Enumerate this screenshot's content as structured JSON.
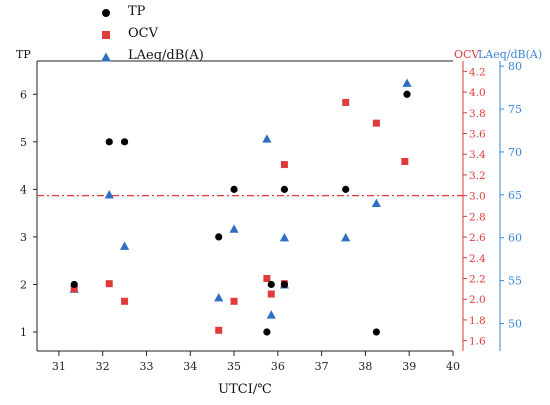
{
  "chart_data": {
    "type": "scatter",
    "xlabel": "UTCI/℃",
    "xlim": [
      30.5,
      40
    ],
    "xticks": [
      "31",
      "32",
      "33",
      "34",
      "35",
      "36",
      "37",
      "38",
      "39",
      "40"
    ],
    "y_left": {
      "label": "TP",
      "lim": [
        0.6,
        6.7
      ],
      "ticks": [
        "1",
        "2",
        "3",
        "4",
        "5",
        "6"
      ]
    },
    "y_right1": {
      "label": "OCV",
      "lim": [
        1.5,
        4.3
      ],
      "ticks": [
        "1.6",
        "1.8",
        "2.0",
        "2.2",
        "2.4",
        "2.6",
        "2.8",
        "3.0",
        "3.2",
        "3.4",
        "3.6",
        "3.8",
        "4.0",
        "4.2"
      ],
      "color": "#e03a3a"
    },
    "y_right2": {
      "label": "LAeq/dB(A)",
      "lim": [
        46.8,
        80.6
      ],
      "ticks": [
        "50",
        "55",
        "60",
        "65",
        "70",
        "75",
        "80"
      ],
      "color": "#3a86d8"
    },
    "reference_line": {
      "axis": "OCV",
      "value": 3.0,
      "color": "#e03a3a",
      "style": "dash-dot"
    },
    "series": [
      {
        "name": "TP",
        "axis": "y_left",
        "marker": "circle",
        "color": "#000000",
        "points": [
          [
            31.35,
            2.0
          ],
          [
            32.15,
            5.0
          ],
          [
            32.5,
            5.0
          ],
          [
            34.65,
            3.0
          ],
          [
            35.0,
            4.0
          ],
          [
            35.75,
            1.0
          ],
          [
            35.85,
            2.0
          ],
          [
            36.15,
            4.0
          ],
          [
            36.15,
            2.0
          ],
          [
            37.55,
            4.0
          ],
          [
            38.25,
            1.0
          ],
          [
            38.95,
            6.0
          ]
        ]
      },
      {
        "name": "OCV",
        "axis": "y_right1",
        "marker": "square",
        "color": "#e03a3a",
        "points": [
          [
            31.35,
            2.1
          ],
          [
            32.15,
            2.15
          ],
          [
            32.5,
            1.98
          ],
          [
            34.65,
            1.7
          ],
          [
            35.0,
            1.98
          ],
          [
            35.75,
            2.2
          ],
          [
            35.85,
            2.05
          ],
          [
            36.15,
            3.3
          ],
          [
            36.15,
            2.15
          ],
          [
            37.55,
            3.9
          ],
          [
            38.25,
            3.7
          ],
          [
            38.9,
            3.33
          ]
        ]
      },
      {
        "name": "LAeq/dB(A)",
        "axis": "y_right2",
        "marker": "triangle",
        "color": "#2e6fc4",
        "points": [
          [
            31.35,
            54.0
          ],
          [
            32.15,
            65.0
          ],
          [
            32.5,
            59.0
          ],
          [
            34.65,
            53.0
          ],
          [
            35.0,
            61.0
          ],
          [
            35.75,
            71.5
          ],
          [
            35.85,
            51.0
          ],
          [
            36.15,
            60.0
          ],
          [
            36.15,
            54.5
          ],
          [
            37.55,
            60.0
          ],
          [
            38.25,
            64.0
          ],
          [
            38.95,
            78.0
          ]
        ]
      }
    ],
    "legend_position": "top-left"
  }
}
